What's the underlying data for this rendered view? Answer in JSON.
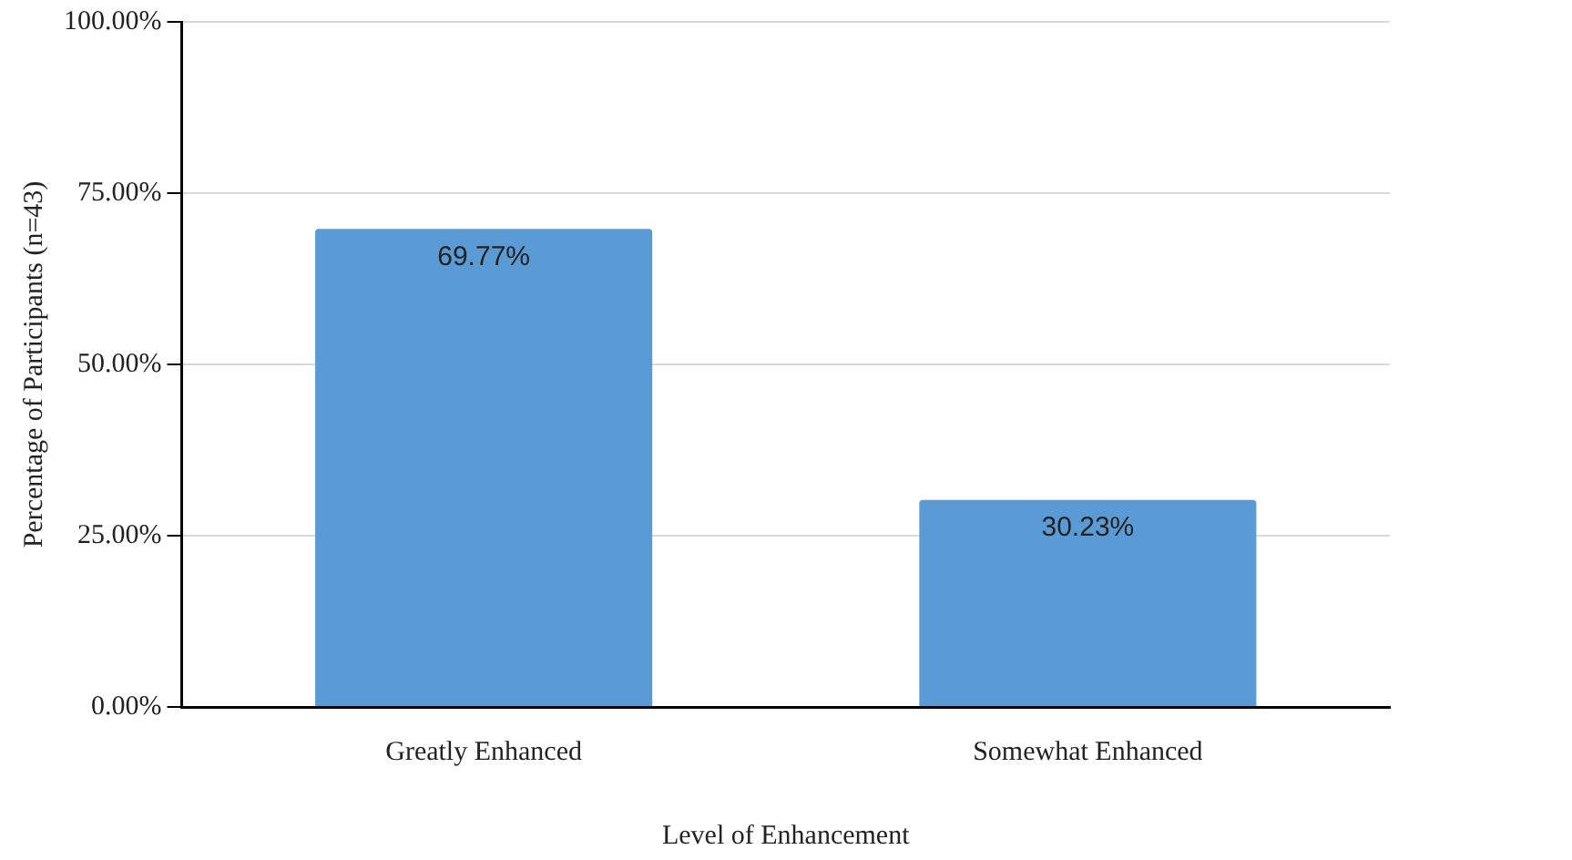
{
  "chart_data": {
    "type": "bar",
    "xlabel": "Level of Enhancement",
    "ylabel": "Percentage of Participants (n=43)",
    "categories": [
      "Greatly Enhanced",
      "Somewhat Enhanced"
    ],
    "values": [
      69.77,
      30.23
    ],
    "color": "#5b9bd5",
    "value_labels": [
      "69.77%",
      "30.23%"
    ],
    "ylim": [
      0,
      100
    ],
    "yticks": [
      {
        "value": 0,
        "label": "0.00%"
      },
      {
        "value": 25,
        "label": "25.00%"
      },
      {
        "value": 50,
        "label": "50.00%"
      },
      {
        "value": 75,
        "label": "75.00%"
      },
      {
        "value": 100,
        "label": "100.00%"
      }
    ],
    "grid": "y",
    "legend": false
  }
}
